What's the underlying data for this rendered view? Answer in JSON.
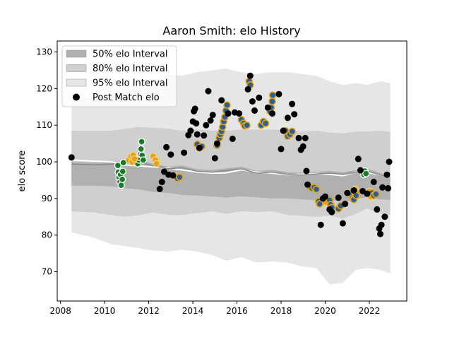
{
  "chart_data": {
    "type": "scatter",
    "title": "Aaron Smith: elo History",
    "xlabel": "",
    "ylabel": "elo score",
    "xlim": [
      2007.85,
      2023.7
    ],
    "ylim": [
      62,
      133
    ],
    "xticks": [
      2008,
      2010,
      2012,
      2014,
      2016,
      2018,
      2020,
      2022
    ],
    "yticks": [
      70,
      80,
      90,
      100,
      110,
      120,
      130
    ],
    "grid": false,
    "legend_position": "top-left",
    "legend": [
      {
        "label": "50% elo Interval",
        "kind": "band",
        "color": "#b0b0b0"
      },
      {
        "label": "80% elo Interval",
        "kind": "band",
        "color": "#cfcfcf"
      },
      {
        "label": "95% elo Interval",
        "kind": "band",
        "color": "#e6e6e6"
      },
      {
        "label": "Post Match elo",
        "kind": "marker",
        "color": "#000000"
      }
    ],
    "band_x": [
      2008.5,
      2009.5,
      2010.3,
      2010.9,
      2011.5,
      2012.2,
      2012.9,
      2013.5,
      2014.2,
      2014.9,
      2015.5,
      2016.2,
      2016.9,
      2017.6,
      2018.3,
      2018.9,
      2019.6,
      2020.2,
      2020.8,
      2021.4,
      2021.9,
      2022.5,
      2022.95
    ],
    "median": [
      100.5,
      100.2,
      100.0,
      99.2,
      98.9,
      98.6,
      98.3,
      97.8,
      97.2,
      96.9,
      97.0,
      97.8,
      97.2,
      96.9,
      96.5,
      96.6,
      96.8,
      96.6,
      96.2,
      97.2,
      97.1,
      96.4,
      96.0
    ],
    "band_50": {
      "lower": [
        93.5,
        93.5,
        93.3,
        92.8,
        92.5,
        91.8,
        91.5,
        91.0,
        90.8,
        90.5,
        90.2,
        90.6,
        90.3,
        90.0,
        90.0,
        89.8,
        89.5,
        89.6,
        89.0,
        89.8,
        90.4,
        89.7,
        89.6
      ],
      "upper": [
        100.0,
        99.8,
        100.0,
        100.3,
        100.6,
        99.5,
        98.7,
        99.0,
        98.0,
        97.8,
        98.2,
        98.7,
        97.5,
        97.8,
        97.2,
        97.0,
        97.3,
        97.5,
        97.2,
        97.7,
        98.1,
        97.0,
        96.4
      ]
    },
    "band_80": {
      "lower": [
        86.5,
        86.2,
        85.5,
        85.0,
        85.4,
        86.2,
        85.5,
        85.5,
        86.0,
        86.5,
        85.8,
        86.5,
        86.3,
        86.5,
        85.5,
        85.3,
        85.0,
        85.3,
        84.5,
        85.8,
        87.3,
        85.8,
        85.5
      ],
      "upper": [
        108.5,
        108.5,
        108.5,
        109.0,
        109.5,
        109.3,
        109.0,
        108.5,
        108.8,
        108.5,
        108.5,
        108.8,
        108.8,
        108.8,
        108.6,
        108.2,
        108.5,
        108.0,
        107.8,
        108.2,
        108.3,
        108.5,
        108.2
      ]
    },
    "band_95": {
      "lower": [
        80.8,
        79.3,
        77.5,
        77.0,
        76.5,
        75.8,
        75.5,
        76.0,
        75.5,
        74.5,
        73.0,
        74.0,
        72.5,
        72.8,
        72.5,
        71.5,
        71.0,
        66.5,
        67.0,
        70.5,
        71.0,
        70.5,
        69.5
      ],
      "upper": [
        116.5,
        118.0,
        118.5,
        119.0,
        120.0,
        122.5,
        124.0,
        123.5,
        124.5,
        125.0,
        125.5,
        124.5,
        124.0,
        124.5,
        124.5,
        124.0,
        123.5,
        122.0,
        121.0,
        121.5,
        121.0,
        122.0,
        121.5
      ]
    },
    "post_match": [
      [
        2008.5,
        101.2
      ],
      [
        2012.5,
        92.6
      ],
      [
        2012.6,
        94.5
      ],
      [
        2012.7,
        97.3
      ],
      [
        2012.8,
        104.0
      ],
      [
        2012.9,
        96.5
      ],
      [
        2013.0,
        102.0
      ],
      [
        2013.1,
        96.3
      ],
      [
        2013.6,
        102.5
      ],
      [
        2013.8,
        107.3
      ],
      [
        2013.9,
        108.5
      ],
      [
        2014.0,
        111.0
      ],
      [
        2014.05,
        113.8
      ],
      [
        2014.1,
        114.5
      ],
      [
        2014.15,
        110.5
      ],
      [
        2014.2,
        107.5
      ],
      [
        2014.3,
        103.8
      ],
      [
        2014.5,
        107.2
      ],
      [
        2014.6,
        110.0
      ],
      [
        2014.7,
        119.3
      ],
      [
        2014.8,
        111.3
      ],
      [
        2014.9,
        112.8
      ],
      [
        2015.0,
        101.0
      ],
      [
        2015.1,
        105.0
      ],
      [
        2015.3,
        116.8
      ],
      [
        2015.6,
        113.2
      ],
      [
        2015.8,
        106.3
      ],
      [
        2015.9,
        113.5
      ],
      [
        2016.1,
        113.2
      ],
      [
        2016.5,
        119.8
      ],
      [
        2016.6,
        123.5
      ],
      [
        2016.7,
        116.5
      ],
      [
        2016.8,
        114.0
      ],
      [
        2017.0,
        117.5
      ],
      [
        2017.4,
        114.8
      ],
      [
        2017.6,
        113.2
      ],
      [
        2017.9,
        118.5
      ],
      [
        2018.0,
        103.5
      ],
      [
        2018.1,
        108.5
      ],
      [
        2018.3,
        112.0
      ],
      [
        2018.5,
        115.8
      ],
      [
        2018.6,
        113.0
      ],
      [
        2018.8,
        106.5
      ],
      [
        2018.9,
        103.3
      ],
      [
        2019.0,
        104.2
      ],
      [
        2019.1,
        106.5
      ],
      [
        2019.15,
        97.5
      ],
      [
        2019.2,
        93.8
      ],
      [
        2019.8,
        82.8
      ],
      [
        2019.9,
        90.0
      ],
      [
        2020.0,
        90.5
      ],
      [
        2020.2,
        87.0
      ],
      [
        2020.3,
        86.3
      ],
      [
        2020.6,
        90.2
      ],
      [
        2020.8,
        83.2
      ],
      [
        2020.9,
        88.5
      ],
      [
        2021.0,
        91.5
      ],
      [
        2021.3,
        92.2
      ],
      [
        2021.5,
        100.8
      ],
      [
        2021.6,
        97.7
      ],
      [
        2021.7,
        92.0
      ],
      [
        2021.9,
        91.3
      ],
      [
        2022.2,
        94.5
      ],
      [
        2022.35,
        87.0
      ],
      [
        2022.45,
        81.8
      ],
      [
        2022.5,
        80.3
      ],
      [
        2022.55,
        82.8
      ],
      [
        2022.6,
        93.0
      ],
      [
        2022.7,
        85.0
      ],
      [
        2022.8,
        96.5
      ],
      [
        2022.85,
        92.8
      ],
      [
        2022.9,
        100.0
      ]
    ],
    "wins_blue": [
      [
        2013.3,
        95.5
      ],
      [
        2013.4,
        95.8
      ],
      [
        2014.2,
        104.8
      ],
      [
        2014.3,
        103.8
      ],
      [
        2014.4,
        104.2
      ],
      [
        2015.1,
        104.5
      ],
      [
        2015.2,
        106.5
      ],
      [
        2015.25,
        107.5
      ],
      [
        2015.3,
        108.3
      ],
      [
        2015.35,
        109.5
      ],
      [
        2015.4,
        111.0
      ],
      [
        2015.45,
        112.2
      ],
      [
        2015.5,
        114.0
      ],
      [
        2015.55,
        115.5
      ],
      [
        2016.2,
        111.5
      ],
      [
        2016.3,
        110.5
      ],
      [
        2016.35,
        109.8
      ],
      [
        2016.45,
        110.0
      ],
      [
        2016.55,
        122.0
      ],
      [
        2016.6,
        121.0
      ],
      [
        2017.1,
        110.0
      ],
      [
        2017.2,
        111.0
      ],
      [
        2017.3,
        110.5
      ],
      [
        2017.5,
        113.8
      ],
      [
        2017.55,
        114.8
      ],
      [
        2017.6,
        116.5
      ],
      [
        2017.62,
        118.2
      ],
      [
        2018.2,
        108.5
      ],
      [
        2018.3,
        107.0
      ],
      [
        2018.4,
        107.5
      ],
      [
        2018.5,
        108.3
      ],
      [
        2019.3,
        93.2
      ],
      [
        2019.4,
        92.8
      ],
      [
        2019.5,
        93.0
      ],
      [
        2019.6,
        92.5
      ],
      [
        2019.7,
        89.2
      ],
      [
        2019.75,
        88.5
      ],
      [
        2020.2,
        89.5
      ],
      [
        2020.25,
        88.3
      ],
      [
        2020.3,
        87.5
      ],
      [
        2020.6,
        87.2
      ],
      [
        2020.7,
        88.0
      ],
      [
        2021.2,
        91.0
      ],
      [
        2021.25,
        90.0
      ],
      [
        2021.3,
        89.7
      ],
      [
        2021.35,
        91.5
      ],
      [
        2021.4,
        90.8
      ],
      [
        2022.1,
        91.5
      ],
      [
        2022.2,
        90.8
      ],
      [
        2022.3,
        91.2
      ]
    ],
    "wins_orange": [
      [
        2011.1,
        100.5
      ],
      [
        2011.2,
        101.5
      ],
      [
        2011.25,
        100.0
      ],
      [
        2011.3,
        101.8
      ],
      [
        2011.35,
        100.8
      ],
      [
        2012.2,
        101.5
      ],
      [
        2012.3,
        100.5
      ],
      [
        2012.35,
        99.5
      ],
      [
        2013.2,
        96.0
      ],
      [
        2020.0,
        89.0
      ],
      [
        2020.3,
        87.0
      ],
      [
        2021.0,
        91.5
      ],
      [
        2021.35,
        92.5
      ],
      [
        2022.0,
        92.0
      ],
      [
        2022.05,
        90.5
      ]
    ],
    "wins_green": [
      [
        2010.6,
        99.0
      ],
      [
        2010.62,
        97.2
      ],
      [
        2010.65,
        95.8
      ],
      [
        2010.7,
        94.5
      ],
      [
        2010.72,
        96.5
      ],
      [
        2010.75,
        93.6
      ],
      [
        2010.8,
        95.2
      ],
      [
        2010.82,
        97.4
      ],
      [
        2010.85,
        99.8
      ],
      [
        2011.5,
        99.5
      ],
      [
        2011.55,
        100.5
      ],
      [
        2011.6,
        101.2
      ],
      [
        2011.62,
        102.0
      ],
      [
        2011.65,
        103.5
      ],
      [
        2011.68,
        105.5
      ],
      [
        2011.7,
        101.8
      ],
      [
        2011.75,
        100.5
      ],
      [
        2021.75,
        96.5
      ],
      [
        2021.8,
        97.5
      ],
      [
        2021.85,
        96.8
      ]
    ]
  }
}
